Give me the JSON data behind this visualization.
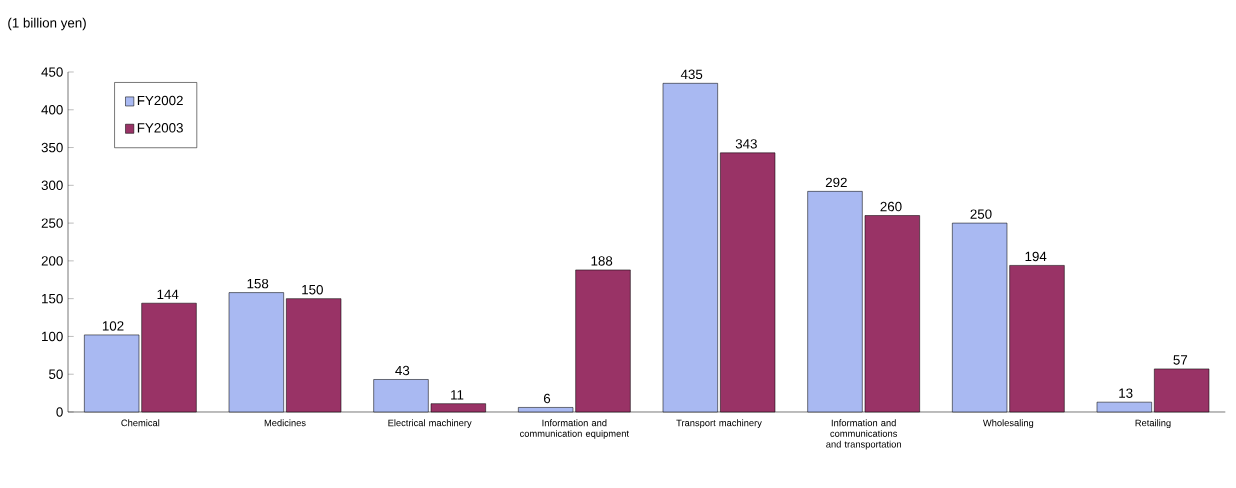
{
  "chart_data": {
    "type": "bar",
    "ylabel": "(1 billion yen)",
    "categories": [
      "Chemical",
      "Medicines",
      "Electrical machinery",
      "Information and communication equipment",
      "Transport machinery",
      "Information and communications and transportation",
      "Wholesaling",
      "Retailing"
    ],
    "series": [
      {
        "name": "FY2002",
        "color": "#a9b9f2",
        "values": [
          102,
          158,
          43,
          6,
          435,
          292,
          250,
          13
        ]
      },
      {
        "name": "FY2003",
        "color": "#993366",
        "values": [
          144,
          150,
          11,
          188,
          343,
          260,
          194,
          57
        ]
      }
    ],
    "ylim": [
      0,
      450
    ],
    "yticks": [
      0,
      50,
      100,
      150,
      200,
      250,
      300,
      350,
      400,
      450
    ],
    "data_labels": true,
    "legend": "top left",
    "grid": false
  }
}
